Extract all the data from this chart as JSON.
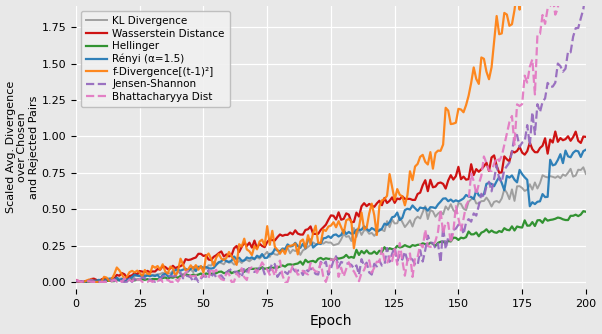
{
  "title": "",
  "xlabel": "Epoch",
  "ylabel": "Scaled Avg. Divergence\nover Chosen\nand Rejected Pairs",
  "xlim": [
    0,
    200
  ],
  "ylim": [
    -0.05,
    1.9
  ],
  "yticks": [
    0.0,
    0.25,
    0.5,
    0.75,
    1.0,
    1.25,
    1.5,
    1.75
  ],
  "xticks": [
    0,
    25,
    50,
    75,
    100,
    125,
    150,
    175,
    200
  ],
  "series": [
    {
      "label": "KL Divergence",
      "color": "#999999",
      "lw": 1.4,
      "ls": "solid",
      "seed": 10
    },
    {
      "label": "Wasserstein Distance",
      "color": "#cc0000",
      "lw": 1.6,
      "ls": "solid",
      "seed": 20
    },
    {
      "label": "Hellinger",
      "color": "#228B22",
      "lw": 1.6,
      "ls": "solid",
      "seed": 30
    },
    {
      "label": "Rényi (α=1.5)",
      "color": "#1f77b4",
      "lw": 1.6,
      "ls": "solid",
      "seed": 40
    },
    {
      "label": "f-Divergence[(t-1)²]",
      "color": "#ff7f0e",
      "lw": 1.6,
      "ls": "solid",
      "seed": 50
    },
    {
      "label": "Jensen-Shannon",
      "color": "#9467bd",
      "lw": 1.6,
      "ls": "dashed",
      "seed": 60
    },
    {
      "label": "Bhattacharyya Dist",
      "color": "#e377c2",
      "lw": 1.6,
      "ls": "dashed",
      "seed": 70
    }
  ],
  "figsize": [
    6.02,
    3.34
  ],
  "dpi": 100,
  "bg_color": "#e8e8e8",
  "grid_color": "white"
}
